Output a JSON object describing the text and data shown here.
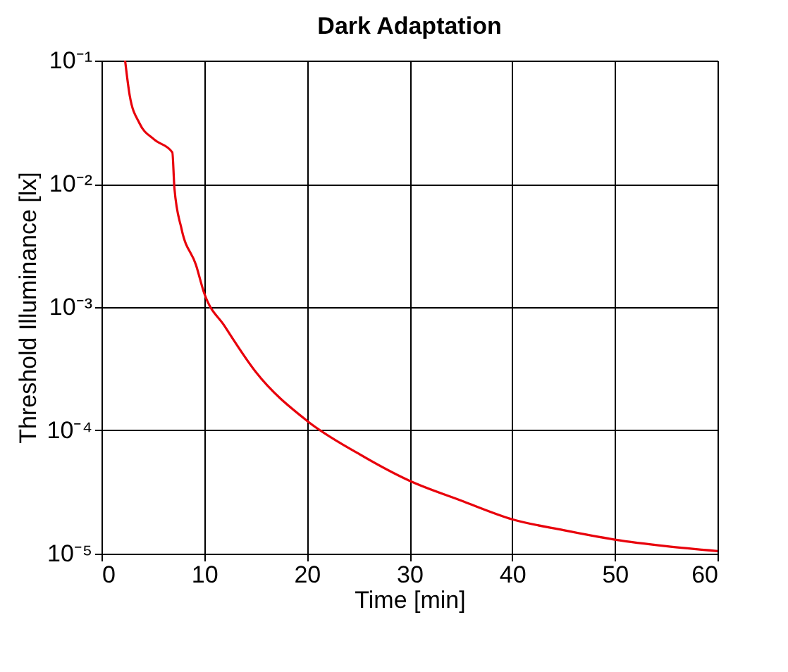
{
  "chart_data": {
    "type": "line",
    "title": "Dark Adaptation",
    "xlabel": "Time [min]",
    "ylabel": "Threshold Illuminance [lx]",
    "series": [
      {
        "color": "#e8000b",
        "x": [
          2.3,
          2.75,
          3.7,
          5.1,
          6.9,
          7.1,
          7.8,
          9.2,
          10,
          12,
          15,
          20,
          25,
          30,
          35,
          40,
          45,
          50,
          55,
          60
        ],
        "values": [
          0.1,
          0.052,
          0.031,
          0.023,
          0.018,
          0.0093,
          0.0043,
          0.0022,
          0.0013,
          0.0007,
          0.0003,
          0.00012,
          6.5e-05,
          3.9e-05,
          2.7e-05,
          1.9e-05,
          1.55e-05,
          1.3e-05,
          1.15e-05,
          1.05e-05
        ]
      }
    ],
    "xlim": [
      0,
      60
    ],
    "xticks": [
      0,
      10,
      20,
      30,
      40,
      50,
      60
    ],
    "ylim": [
      1e-05,
      0.1
    ],
    "log": "y",
    "yticks": [
      {
        "value": 1e-05,
        "label": "10⁻⁵"
      },
      {
        "value": 0.0001,
        "label": "10⁻⁴"
      },
      {
        "value": 0.001,
        "label": "10⁻³"
      },
      {
        "value": 0.01,
        "label": "10⁻²"
      },
      {
        "value": 0.1,
        "label": "10⁻¹"
      }
    ],
    "grid": true,
    "marker": "none",
    "line_style": "solid"
  }
}
